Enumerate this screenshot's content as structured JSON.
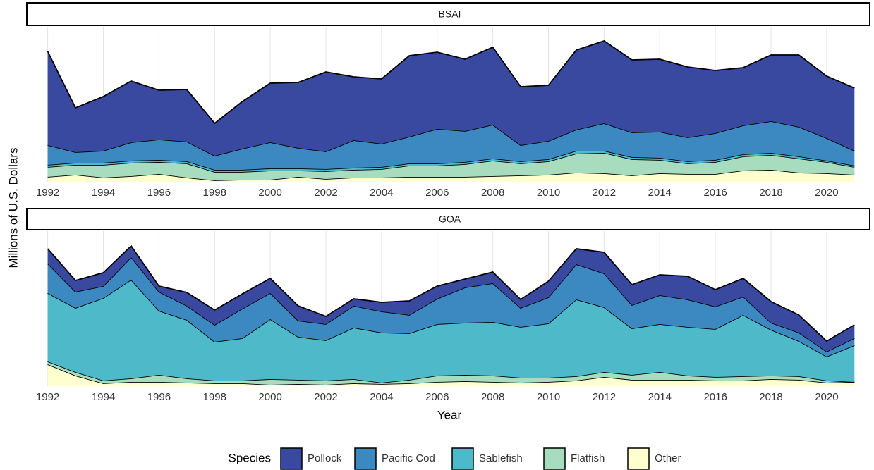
{
  "chart_data": [
    {
      "type": "area",
      "title": "BSAI",
      "x": [
        1992,
        1993,
        1994,
        1995,
        1996,
        1997,
        1998,
        1999,
        2000,
        2001,
        2002,
        2003,
        2004,
        2005,
        2006,
        2007,
        2008,
        2009,
        2010,
        2011,
        2012,
        2013,
        2014,
        2015,
        2016,
        2017,
        2018,
        2019,
        2020,
        2021
      ],
      "xlim": [
        1991.3,
        2021.6
      ],
      "xticks": [
        1992,
        1994,
        1996,
        1998,
        2000,
        2002,
        2004,
        2006,
        2008,
        2010,
        2012,
        2014,
        2016,
        2018,
        2020
      ],
      "ylim": [
        0,
        220
      ],
      "grid": true,
      "series": [
        {
          "name": "Pollock",
          "color": "#3949a0",
          "values": [
            133,
            63,
            77,
            87,
            70,
            74,
            46,
            67,
            84,
            93,
            113,
            90,
            92,
            115,
            109,
            102,
            110,
            83,
            79,
            113,
            117,
            103,
            103,
            100,
            89,
            82,
            94,
            102,
            88,
            89
          ]
        },
        {
          "name": "Pacific Cod",
          "color": "#3c88c0",
          "values": [
            28,
            15,
            17,
            26,
            29,
            28,
            20,
            30,
            37,
            29,
            25,
            39,
            33,
            38,
            49,
            44,
            48,
            23,
            26,
            30,
            39,
            35,
            37,
            34,
            38,
            41,
            45,
            42,
            32,
            21
          ]
        },
        {
          "name": "Sablefish",
          "color": "#4db9c9",
          "values": [
            3,
            3,
            3,
            3,
            3,
            3,
            3,
            3,
            3,
            3,
            3,
            3,
            3,
            3,
            3,
            3,
            3,
            3,
            3,
            4,
            3,
            3,
            3,
            3,
            3,
            3,
            3,
            3,
            2,
            2
          ]
        },
        {
          "name": "Flatfish",
          "color": "#a8dcbe",
          "values": [
            14,
            14,
            18,
            19,
            17,
            20,
            12,
            11,
            13,
            9,
            11,
            11,
            12,
            16,
            16,
            18,
            22,
            17,
            19,
            27,
            29,
            23,
            19,
            15,
            17,
            20,
            21,
            20,
            16,
            11
          ]
        },
        {
          "name": "Other",
          "color": "#fefecf",
          "values": [
            7,
            10,
            6,
            8,
            11,
            6,
            2,
            3,
            3,
            7,
            4,
            6,
            6,
            7,
            7,
            7,
            8,
            9,
            10,
            13,
            12,
            9,
            12,
            11,
            11,
            16,
            17,
            13,
            12,
            10
          ]
        }
      ]
    },
    {
      "type": "area",
      "title": "GOA",
      "x": [
        1992,
        1993,
        1994,
        1995,
        1996,
        1997,
        1998,
        1999,
        2000,
        2001,
        2002,
        2003,
        2004,
        2005,
        2006,
        2007,
        2008,
        2009,
        2010,
        2011,
        2012,
        2013,
        2014,
        2015,
        2016,
        2017,
        2018,
        2019,
        2020,
        2021
      ],
      "xlim": [
        1991.3,
        2021.6
      ],
      "xticks": [
        1992,
        1994,
        1996,
        1998,
        2000,
        2002,
        2004,
        2006,
        2008,
        2010,
        2012,
        2014,
        2016,
        2018,
        2020
      ],
      "ylim": [
        0,
        220
      ],
      "grid": true,
      "series": [
        {
          "name": "Pollock",
          "color": "#3949a0",
          "values": [
            21,
            16,
            19,
            16,
            8,
            19,
            21,
            21,
            21,
            21,
            11,
            10,
            13,
            20,
            18,
            12,
            16,
            12,
            23,
            22,
            30,
            29,
            29,
            33,
            24,
            26,
            30,
            25,
            15,
            19
          ]
        },
        {
          "name": "Pacific Cod",
          "color": "#3c88c0",
          "values": [
            42,
            23,
            17,
            32,
            27,
            20,
            24,
            42,
            37,
            23,
            23,
            31,
            30,
            26,
            36,
            50,
            55,
            27,
            37,
            50,
            48,
            33,
            41,
            39,
            32,
            26,
            10,
            12,
            7,
            10
          ]
        },
        {
          "name": "Sablefish",
          "color": "#4db9c9",
          "values": [
            97,
            91,
            117,
            140,
            91,
            83,
            55,
            60,
            85,
            61,
            57,
            73,
            71,
            66,
            73,
            74,
            76,
            72,
            77,
            109,
            92,
            66,
            68,
            69,
            68,
            87,
            65,
            50,
            34,
            52
          ]
        },
        {
          "name": "Flatfish",
          "color": "#a8dcbe",
          "values": [
            4,
            5,
            4,
            5,
            10,
            6,
            4,
            4,
            8,
            6,
            6,
            6,
            2,
            5,
            9,
            9,
            9,
            7,
            6,
            6,
            7,
            7,
            11,
            6,
            5,
            6,
            5,
            5,
            3,
            0
          ]
        },
        {
          "name": "Other",
          "color": "#fefecf",
          "values": [
            31,
            15,
            4,
            6,
            6,
            5,
            4,
            4,
            2,
            3,
            2,
            4,
            3,
            4,
            6,
            7,
            6,
            5,
            6,
            8,
            13,
            9,
            9,
            9,
            8,
            8,
            10,
            9,
            5,
            6
          ]
        }
      ]
    }
  ],
  "axis_labels": {
    "y": "Millions of U.S. Dollars",
    "x": "Year"
  },
  "legend": {
    "title": "Species",
    "position": "bottom"
  }
}
